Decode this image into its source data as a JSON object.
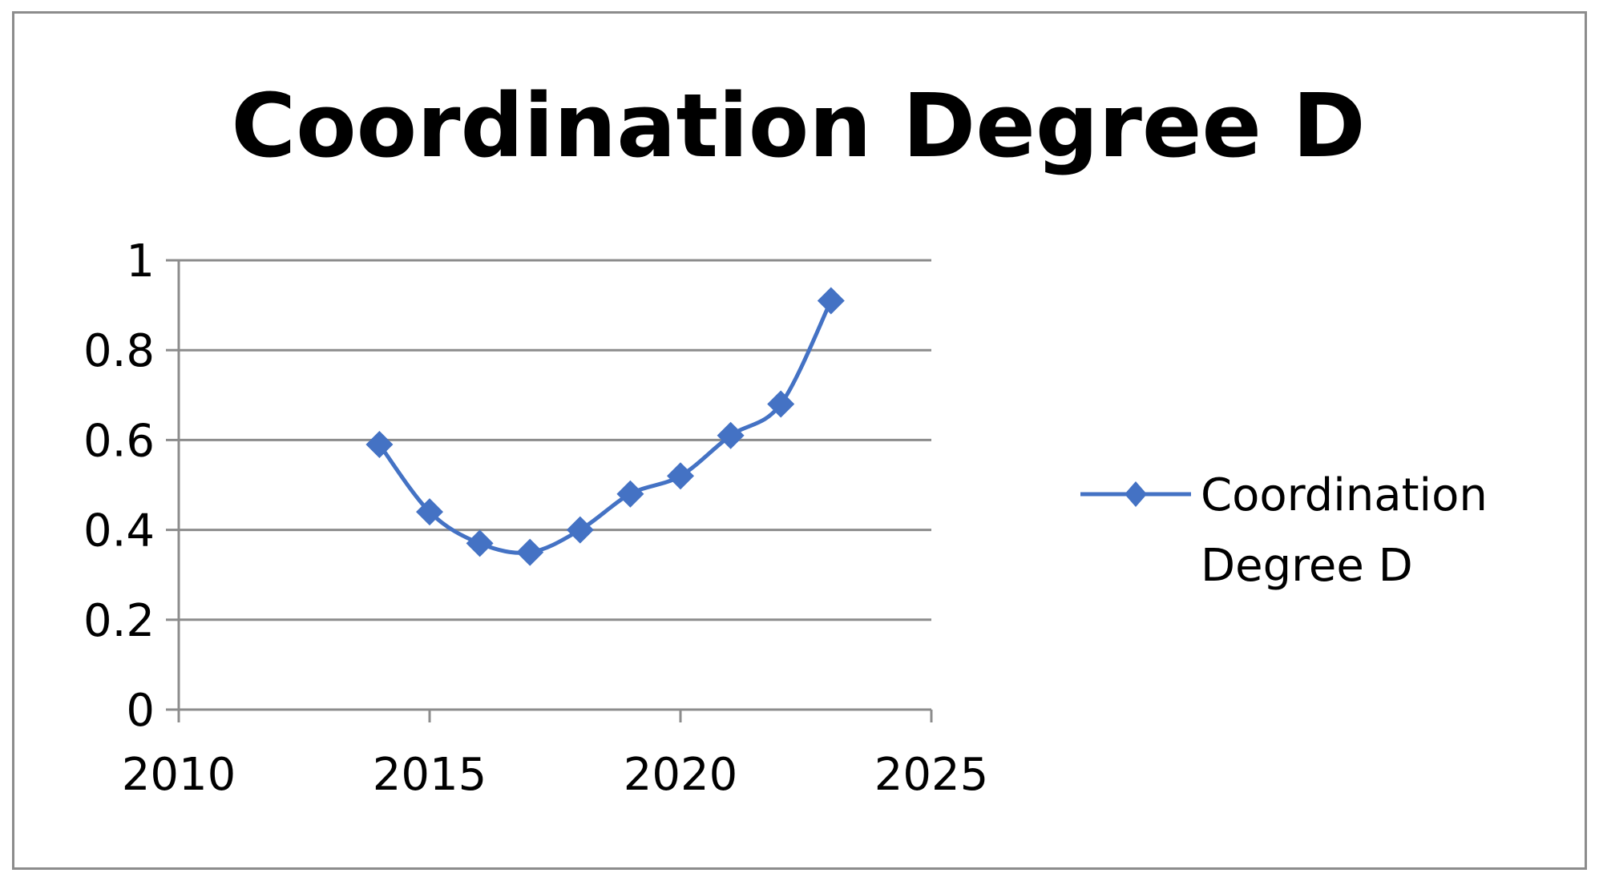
{
  "chart_data": {
    "type": "scatter",
    "title": "Coordination Degree D",
    "xlabel": "",
    "ylabel": "",
    "xlim": [
      2010,
      2025
    ],
    "ylim": [
      0,
      1
    ],
    "x_ticks": [
      "2010",
      "2015",
      "2020",
      "2025"
    ],
    "y_ticks": [
      "0",
      "0.2",
      "0.4",
      "0.6",
      "0.8",
      "1"
    ],
    "grid": "horizontal",
    "legend": "right",
    "series": [
      {
        "name": "Coordination Degree D",
        "color": "#4472C4",
        "marker": "diamond",
        "line": "smooth",
        "x": [
          2014,
          2015,
          2016,
          2017,
          2018,
          2019,
          2020,
          2021,
          2022,
          2023
        ],
        "y": [
          0.59,
          0.44,
          0.37,
          0.35,
          0.4,
          0.48,
          0.52,
          0.61,
          0.68,
          0.91
        ]
      }
    ]
  },
  "legend": {
    "line1": "Coordination",
    "line2": "Degree D"
  }
}
